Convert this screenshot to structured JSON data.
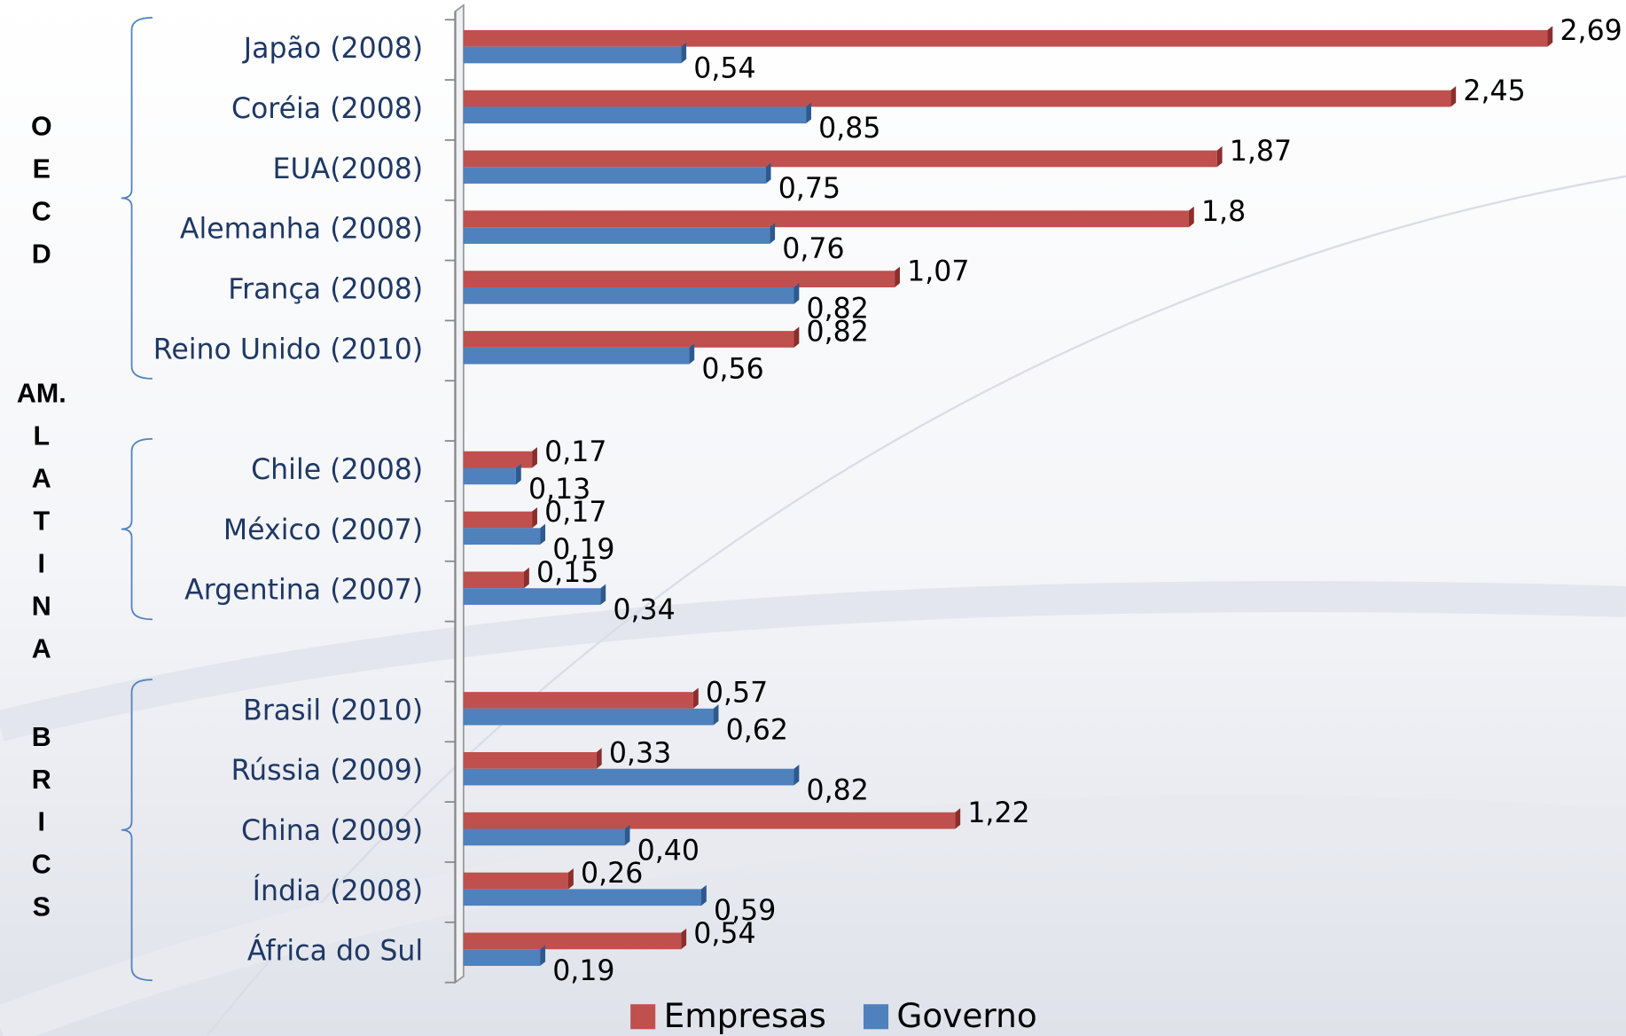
{
  "chart_data": {
    "type": "bar",
    "orientation": "horizontal",
    "categories": [
      "Japão (2008)",
      "Coréia (2008)",
      "EUA(2008)",
      "Alemanha (2008)",
      "França (2008)",
      "Reino Unido (2010)",
      null,
      "Chile (2008)",
      "México (2007)",
      "Argentina (2007)",
      null,
      "Brasil (2010)",
      "Rússia (2009)",
      "China (2009)",
      "Índia (2008)",
      "África do Sul"
    ],
    "series": [
      {
        "name": "Empresas",
        "color": "#c0504d",
        "values": [
          2.69,
          2.45,
          1.87,
          1.8,
          1.07,
          0.82,
          null,
          0.17,
          0.17,
          0.15,
          null,
          0.57,
          0.33,
          1.22,
          0.26,
          0.54
        ],
        "value_labels": [
          "2,69",
          "2,45",
          "1,87",
          "1,8",
          "1,07",
          "0,82",
          null,
          "0,17",
          "0,17",
          "0,15",
          null,
          "0,57",
          "0,33",
          "1,22",
          "0,26",
          "0,54"
        ]
      },
      {
        "name": "Governo",
        "color": "#4f81bd",
        "values": [
          0.54,
          0.85,
          0.75,
          0.76,
          0.82,
          0.56,
          null,
          0.13,
          0.19,
          0.34,
          null,
          0.62,
          0.82,
          0.4,
          0.59,
          0.19
        ],
        "value_labels": [
          "0,54",
          "0,85",
          "0,75",
          "0,76",
          "0,82",
          "0,56",
          null,
          "0,13",
          "0,19",
          "0,34",
          null,
          "0,62",
          "0,82",
          "0,40",
          "0,59",
          "0,19"
        ]
      }
    ],
    "groups": [
      {
        "lines": [
          "O",
          "E",
          "C",
          "D"
        ]
      },
      {
        "lines": [
          "AM.",
          "L",
          "A",
          "T",
          "I",
          "N",
          "A"
        ]
      },
      {
        "lines": [
          "B",
          "R",
          "I",
          "C",
          "S"
        ]
      }
    ],
    "xlim": [
      0,
      2.8
    ],
    "legend": "bottom"
  }
}
